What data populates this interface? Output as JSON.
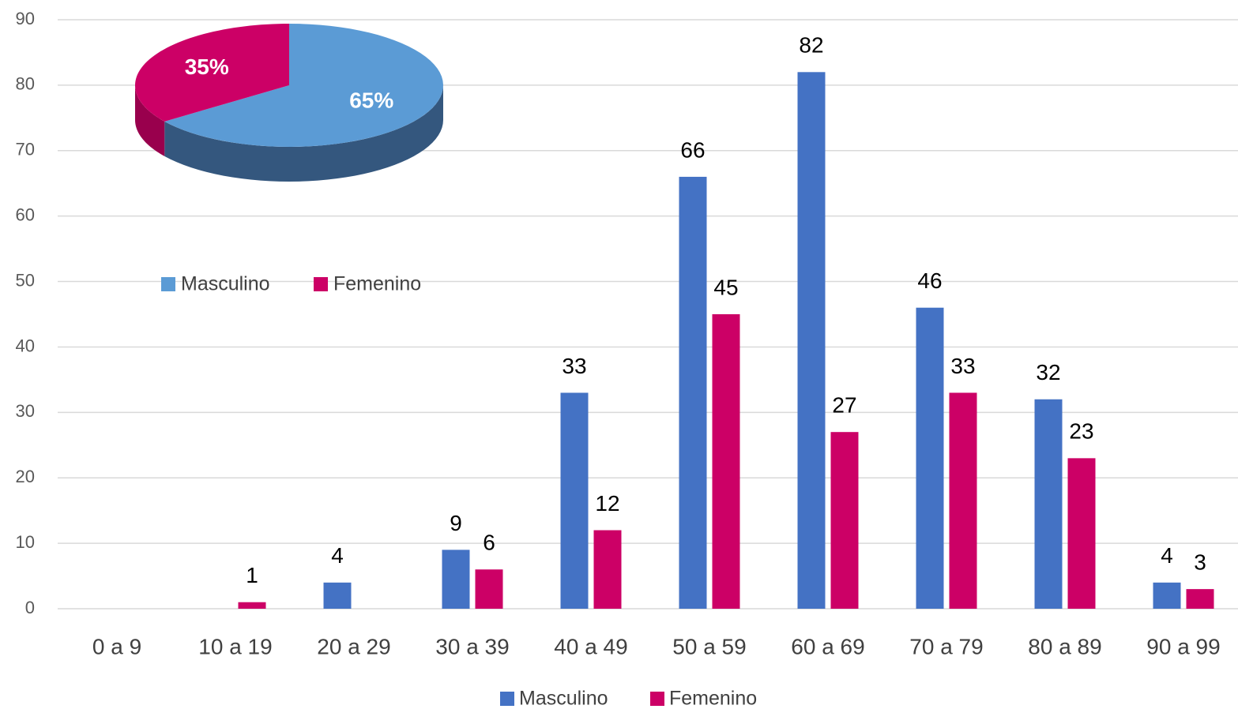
{
  "chart_data": [
    {
      "type": "bar",
      "categories": [
        "0 a 9",
        "10 a 19",
        "20 a 29",
        "30 a 39",
        "40 a 49",
        "50 a 59",
        "60 a 69",
        "70 a 79",
        "80 a 89",
        "90 a 99"
      ],
      "series": [
        {
          "name": "Masculino",
          "color": "#4472c4",
          "values": [
            null,
            null,
            4,
            9,
            33,
            66,
            82,
            46,
            32,
            4
          ]
        },
        {
          "name": "Femenino",
          "color": "#cc0066",
          "values": [
            null,
            1,
            null,
            6,
            12,
            45,
            27,
            33,
            23,
            3
          ]
        }
      ],
      "ylim": [
        0,
        90
      ],
      "yticks": [
        0,
        10,
        20,
        30,
        40,
        50,
        60,
        70,
        80,
        90
      ],
      "grid": true,
      "legend": "bottom"
    },
    {
      "type": "pie",
      "categories": [
        "Masculino",
        "Femenino"
      ],
      "values": [
        65,
        35
      ],
      "value_labels": [
        "65%",
        "35%"
      ],
      "colors": [
        "#5b9bd5",
        "#cc0066"
      ],
      "legend": "bottom"
    }
  ]
}
